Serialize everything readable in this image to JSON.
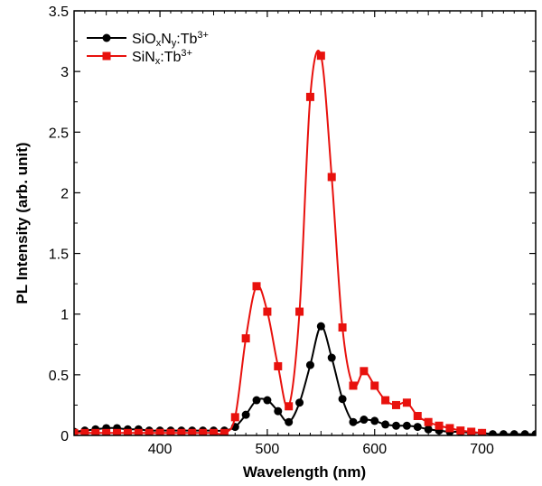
{
  "chart_data": {
    "type": "line",
    "title": "",
    "xlabel": "Wavelength (nm)",
    "ylabel": "PL Intensity (arb. unit)",
    "xlim": [
      320,
      750
    ],
    "ylim": [
      0,
      3.5
    ],
    "x_ticks": [
      "400",
      "500",
      "600",
      "700"
    ],
    "y_ticks": [
      "0",
      "0.5",
      "1",
      "1.5",
      "2",
      "2.5",
      "3",
      "3.5"
    ],
    "legend_position": "top-left",
    "series": [
      {
        "name": "SiOxNy:Tb3+",
        "legend_parts": [
          [
            "Si",
            ""
          ],
          [
            "O",
            ""
          ],
          [
            "x",
            "sub"
          ],
          [
            "N",
            ""
          ],
          [
            "y",
            "sub"
          ],
          [
            ":Tb",
            ""
          ],
          [
            "3+",
            "sup"
          ]
        ],
        "color": "#000000",
        "marker": "circle",
        "points": [
          [
            320,
            0.03
          ],
          [
            330,
            0.04
          ],
          [
            340,
            0.05
          ],
          [
            350,
            0.06
          ],
          [
            360,
            0.06
          ],
          [
            370,
            0.05
          ],
          [
            380,
            0.05
          ],
          [
            390,
            0.04
          ],
          [
            400,
            0.04
          ],
          [
            410,
            0.04
          ],
          [
            420,
            0.04
          ],
          [
            430,
            0.04
          ],
          [
            440,
            0.04
          ],
          [
            450,
            0.04
          ],
          [
            460,
            0.04
          ],
          [
            470,
            0.07
          ],
          [
            480,
            0.17
          ],
          [
            490,
            0.29
          ],
          [
            500,
            0.29
          ],
          [
            510,
            0.2
          ],
          [
            520,
            0.11
          ],
          [
            530,
            0.27
          ],
          [
            540,
            0.58
          ],
          [
            550,
            0.9
          ],
          [
            560,
            0.64
          ],
          [
            570,
            0.3
          ],
          [
            580,
            0.11
          ],
          [
            590,
            0.13
          ],
          [
            600,
            0.12
          ],
          [
            610,
            0.09
          ],
          [
            620,
            0.08
          ],
          [
            630,
            0.08
          ],
          [
            640,
            0.07
          ],
          [
            650,
            0.05
          ],
          [
            660,
            0.04
          ],
          [
            670,
            0.03
          ],
          [
            680,
            0.03
          ],
          [
            690,
            0.02
          ],
          [
            700,
            0.02
          ],
          [
            710,
            0.01
          ],
          [
            720,
            0.01
          ],
          [
            730,
            0.01
          ],
          [
            740,
            0.01
          ],
          [
            750,
            0.01
          ]
        ]
      },
      {
        "name": "SiNx:Tb3+",
        "legend_parts": [
          [
            "Si",
            ""
          ],
          [
            "N",
            ""
          ],
          [
            "x",
            "sub"
          ],
          [
            ":Tb",
            ""
          ],
          [
            "3+",
            "sup"
          ]
        ],
        "color": "#e8110d",
        "marker": "square",
        "points": [
          [
            320,
            0.02
          ],
          [
            330,
            0.02
          ],
          [
            340,
            0.02
          ],
          [
            350,
            0.02
          ],
          [
            360,
            0.02
          ],
          [
            370,
            0.02
          ],
          [
            380,
            0.02
          ],
          [
            390,
            0.02
          ],
          [
            400,
            0.02
          ],
          [
            410,
            0.02
          ],
          [
            420,
            0.02
          ],
          [
            430,
            0.02
          ],
          [
            440,
            0.02
          ],
          [
            450,
            0.02
          ],
          [
            460,
            0.02
          ],
          [
            470,
            0.15
          ],
          [
            480,
            0.8
          ],
          [
            490,
            1.23
          ],
          [
            500,
            1.02
          ],
          [
            510,
            0.57
          ],
          [
            520,
            0.24
          ],
          [
            530,
            1.02
          ],
          [
            540,
            2.79
          ],
          [
            550,
            3.13
          ],
          [
            560,
            2.13
          ],
          [
            570,
            0.89
          ],
          [
            580,
            0.41
          ],
          [
            590,
            0.53
          ],
          [
            600,
            0.41
          ],
          [
            610,
            0.29
          ],
          [
            620,
            0.25
          ],
          [
            630,
            0.27
          ],
          [
            640,
            0.16
          ],
          [
            650,
            0.11
          ],
          [
            660,
            0.08
          ],
          [
            670,
            0.06
          ],
          [
            680,
            0.04
          ],
          [
            690,
            0.03
          ],
          [
            700,
            0.02
          ]
        ]
      }
    ]
  }
}
